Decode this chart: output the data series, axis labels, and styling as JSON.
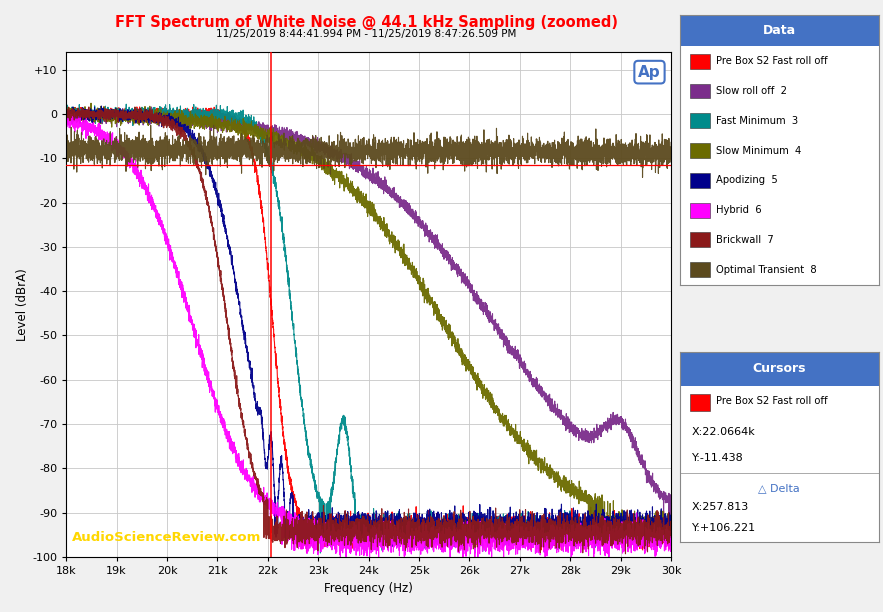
{
  "title": "FFT Spectrum of White Noise @ 44.1 kHz Sampling (zoomed)",
  "subtitle": "11/25/2019 8:44:41.994 PM - 11/25/2019 8:47:26.509 PM",
  "xlabel": "Frequency (Hz)",
  "ylabel": "Level (dBrA)",
  "xlim": [
    18000,
    30000
  ],
  "ylim": [
    -100,
    14
  ],
  "yticks": [
    10,
    0,
    -10,
    -20,
    -30,
    -40,
    -50,
    -60,
    -70,
    -80,
    -90,
    -100
  ],
  "ytick_labels": [
    "+10",
    "0",
    "-10",
    "-20",
    "-30",
    "-40",
    "-50",
    "-60",
    "-70",
    "-80",
    "-90",
    "-100"
  ],
  "xticks": [
    18000,
    19000,
    20000,
    21000,
    22000,
    23000,
    24000,
    25000,
    26000,
    27000,
    28000,
    29000,
    30000
  ],
  "xtick_labels": [
    "18k",
    "19k",
    "20k",
    "21k",
    "22k",
    "23k",
    "24k",
    "25k",
    "26k",
    "27k",
    "28k",
    "29k",
    "30k"
  ],
  "title_color": "#FF0000",
  "subtitle_color": "#000000",
  "background_color": "#F0F0F0",
  "plot_background_color": "#FFFFFF",
  "grid_color": "#C8C8C8",
  "watermark_text": "AudioScienceReview.com",
  "watermark_color": "#FFD700",
  "series": [
    {
      "label": "Pre Box S2 Fast roll off",
      "color": "#FF0000",
      "lw": 0.8
    },
    {
      "label": "Slow roll off  2",
      "color": "#7B2D8B",
      "lw": 0.8
    },
    {
      "label": "Fast Minimum  3",
      "color": "#008B8B",
      "lw": 0.8
    },
    {
      "label": "Slow Minimum  4",
      "color": "#6B6B00",
      "lw": 0.8
    },
    {
      "label": "Apodizing  5",
      "color": "#00008B",
      "lw": 0.8
    },
    {
      "label": "Hybrid  6",
      "color": "#FF00FF",
      "lw": 0.8
    },
    {
      "label": "Brickwall  7",
      "color": "#8B1A1A",
      "lw": 0.8
    },
    {
      "label": "Optimal Transient  8",
      "color": "#5C4A1E",
      "lw": 0.8
    }
  ],
  "cursor_x": 22066.4,
  "cursor_y": -11.438,
  "cursor_color": "#FF0000",
  "hline_y": -11.438,
  "legend_title": "Data",
  "legend_title_bg": "#4472C4",
  "cursors_title": "Cursors",
  "cursors_title_bg": "#4472C4",
  "cursor_label": "Pre Box S2 Fast roll off",
  "cursor_x_label": "X:22.0664k",
  "cursor_y_label": "Y:-11.438",
  "delta_label": "△ Delta",
  "delta_x_label": "X:257.813",
  "delta_y_label": "Y:+106.221"
}
